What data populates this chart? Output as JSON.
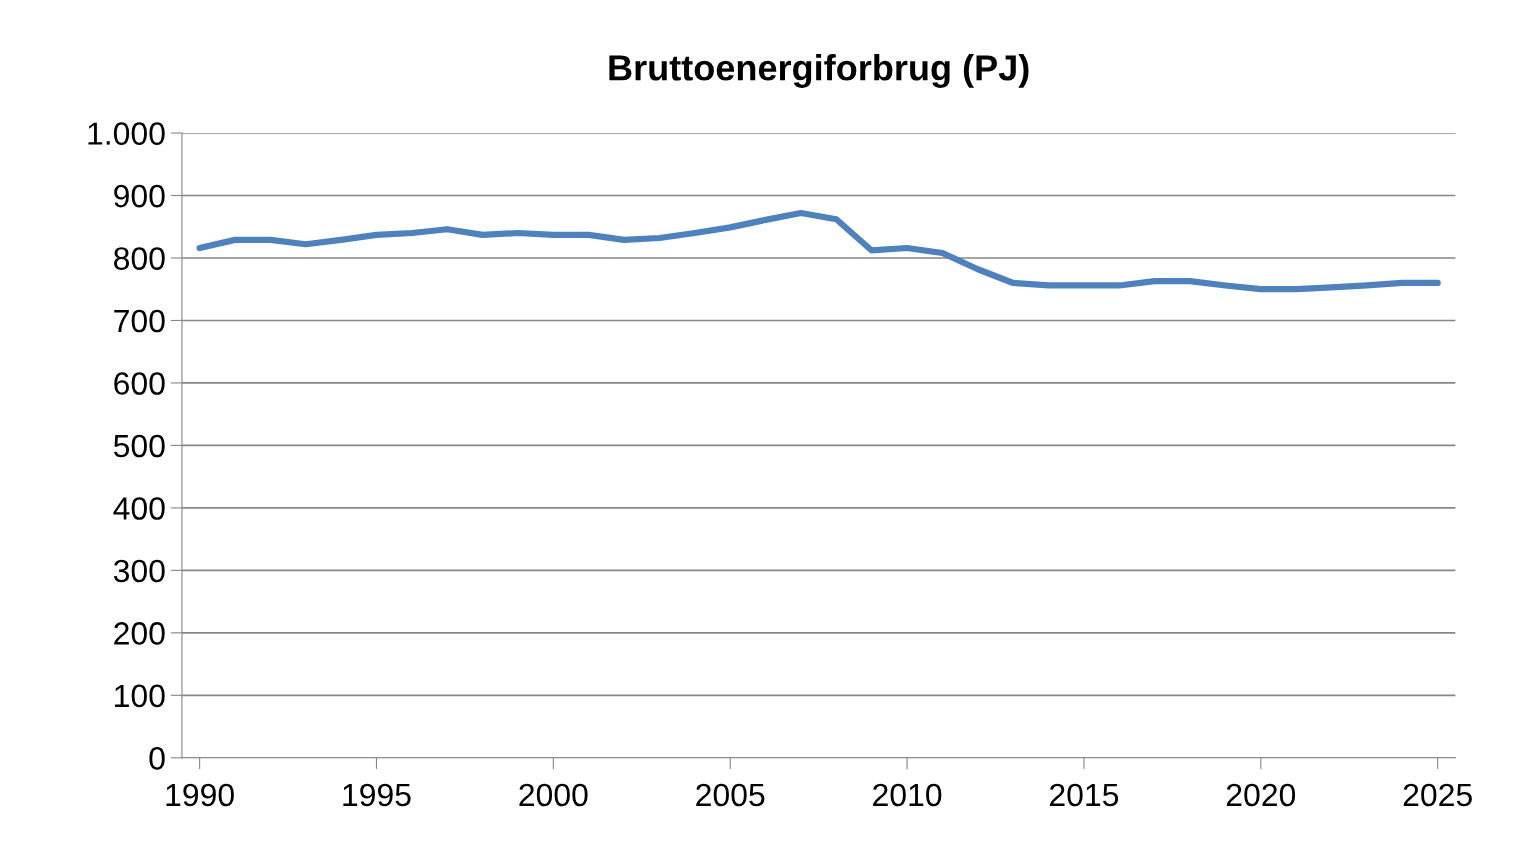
{
  "chart_data": {
    "type": "line",
    "title": "Bruttoenergiforbrug (PJ)",
    "x": [
      1990,
      1991,
      1992,
      1993,
      1994,
      1995,
      1996,
      1997,
      1998,
      1999,
      2000,
      2001,
      2002,
      2003,
      2004,
      2005,
      2006,
      2007,
      2008,
      2009,
      2010,
      2011,
      2012,
      2013,
      2014,
      2015,
      2016,
      2017,
      2018,
      2019,
      2020,
      2021,
      2022,
      2023,
      2024,
      2025
    ],
    "series": [
      {
        "color": "#4f81bd",
        "values": [
          816,
          829,
          829,
          822,
          829,
          837,
          840,
          846,
          837,
          840,
          837,
          837,
          829,
          832,
          840,
          849,
          861,
          872,
          862,
          812,
          816,
          808,
          782,
          760,
          756,
          756,
          756,
          763,
          763,
          756,
          750,
          750,
          753,
          756,
          760,
          760
        ]
      }
    ],
    "xlim": [
      1989.5,
      2025.5
    ],
    "xticks": [
      1990,
      1995,
      2000,
      2005,
      2010,
      2015,
      2020,
      2025
    ],
    "ylim": [
      0,
      1000
    ],
    "yticks": [
      0,
      100,
      200,
      300,
      400,
      500,
      600,
      700,
      800,
      900,
      {
        "value": 1000,
        "label": "1.000"
      }
    ],
    "grid": "y",
    "marker": "none",
    "line_style": "solid"
  }
}
